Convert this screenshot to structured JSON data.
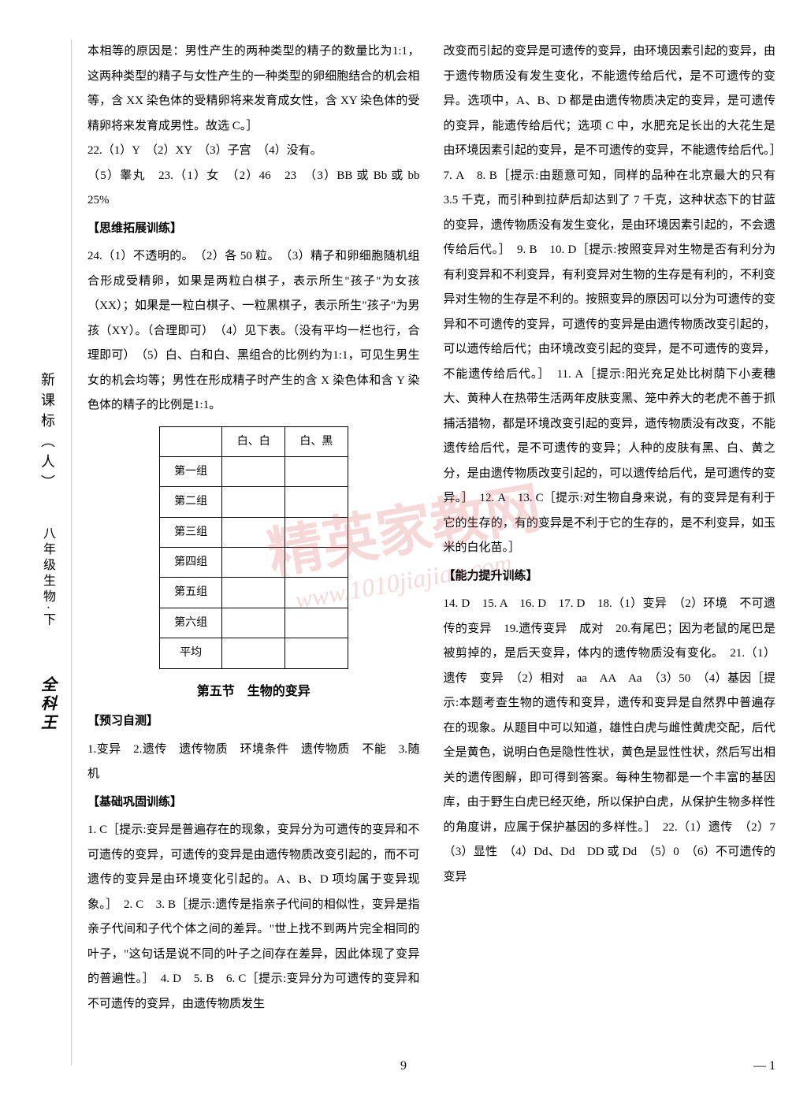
{
  "sidebar": {
    "curriculum": "新课标（人）",
    "subject": "八年级生物·下",
    "brand": "全科王"
  },
  "left_column": {
    "para1": "本相等的原因是：男性产生的两种类型的精子的数量比为1:1，这两种类型的精子与女性产生的一种类型的卵细胞结合的机会相等，含 XX 染色体的受精卵将来发育成女性，含 XY 染色体的受精卵将来发育成男性。故选 C。］",
    "q22": "22.（1）Y　（2）XY　（3）子宫　（4）没有。",
    "q22_5": "（5）睾丸",
    "q23": "23.（1）女　（2）46　23　（3）BB 或 Bb 或 bb　25%",
    "heading1": "【思维拓展训练】",
    "q24": "24.（1）不透明的。　（2）各 50 粒。　（3）精子和卵细胞随机组合形成受精卵，如果是两粒白棋子，表示所生\"孩子\"为女孩（XX）；如果是一粒白棋子、一粒黑棋子，表示所生\"孩子\"为男孩（XY）。（合理即可）　（4）见下表。（没有平均一栏也行，合理即可）　（5）白、白和白、黑组合的比例约为1:1，可见生男生女的机会均等；男性在形成精子时产生的含 X 染色体和含 Y 染色体的精子的比例是1:1。",
    "section_title": "第五节　生物的变异",
    "heading2": "【预习自测】",
    "preview": "1.变异　2.遗传　遗传物质　环境条件　遗传物质　不能　3.随机",
    "heading3": "【基础巩固训练】",
    "basic": "1. C［提示:变异是普遍存在的现象，变异分为可遗传的变异和不可遗传的变异，可遗传的变异是由遗传物质改变引起的，而不可遗传的变异是由环境变化引起的。A、B、D 项均属于变异现象。］　2. C　3. B［提示:遗传是指亲子代间的相似性，变异是指亲子代间和子代个体之间的差异。\"世上找不到两片完全相同的叶子，\"这句话是说不同的叶子之间存在差异，因此体现了变异的普遍性。］　4. D　5. B　6. C［提示:变异分为可遗传的变异和不可遗传的变异，由遗传物质发生"
  },
  "table": {
    "headers": [
      "",
      "白、白",
      "白、黑"
    ],
    "rows": [
      "第一组",
      "第二组",
      "第三组",
      "第四组",
      "第五组",
      "第六组",
      "平均"
    ]
  },
  "right_column": {
    "para1": "改变而引起的变异是可遗传的变异，由环境因素引起的变异，由于遗传物质没有发生变化，不能遗传给后代，是不可遗传的变异。选项中，A、B、D 都是由遗传物质决定的变异，是可遗传的变异，能遗传给后代；选项 C 中，水肥充足长出的大花生是由环境因素引起的变异，是不可遗传的变异，不能遗传给后代。］　7. A　8. B［提示:由题意可知，同样的品种在北京最大的只有 3.5 千克，而引种到拉萨后却达到了 7 千克，这种状态下的甘蓝的变异，遗传物质没有发生变化，是由环境因素引起的，不会遗传给后代。］　9. B　10. D［提示:按照变异对生物是否有利分为有利变异和不利变异，有利变异对生物的生存是有利的，不利变异对生物的生存是不利的。按照变异的原因可以分为可遗传的变异和不可遗传的变异，可遗传的变异是由遗传物质改变引起的，可以遗传给后代；由环境改变引起的变异，是不可遗传的变异，不能遗传给后代。］　11. A［提示:阳光充足处比树荫下小麦穗大、黄种人在热带生活两年皮肤变黑、笼中养大的老虎不善于抓捕活猎物，都是环境改变引起的变异，遗传物质没有改变，不能遗传给后代，是不可遗传的变异；人种的皮肤有黑、白、黄之分，是由遗传物质改变引起的，可以遗传给后代，是可遗传的变异。］　12. A　13. C［提示:对生物自身来说，有的变异是有利于它的生存的，有的变异是不利于它的生存的，是不利变异，如玉米的白化苗。］",
    "heading1": "【能力提升训练】",
    "ability": "14. D　15. A　16. D　17. D　18.（1）变异　（2）环境　不可遗传的变异　19.遗传变异　成对　20.有尾巴；因为老鼠的尾巴是被剪掉的，是后天变异，体内的遗传物质没有变化。　21.（1）遗传　变异　（2）相对　aa　AA　Aa　（3）50　（4）基因［提示:本题考查生物的遗传和变异，遗传和变异是自然界中普遍存在的现象。从题目中可以知道，雄性白虎与雌性黄虎交配，后代全是黄色，说明白色是隐性性状，黄色是显性性状，然后写出相关的遗传图解，即可得到答案。每种生物都是一个丰富的基因库，由于野生白虎已经灭绝，所以保护白虎，从保护生物多样性的角度讲，应属于保护基因的多样性。］　22.（1）遗传　（2）7　（3）显性　（4）Dd、Dd　DD 或 Dd　（5）0　（6）不可遗传的变异"
  },
  "watermark": {
    "main": "精英家教网",
    "sub": "www.1010jiajiao.com"
  },
  "page_number": "9",
  "page_corner": "— 1"
}
